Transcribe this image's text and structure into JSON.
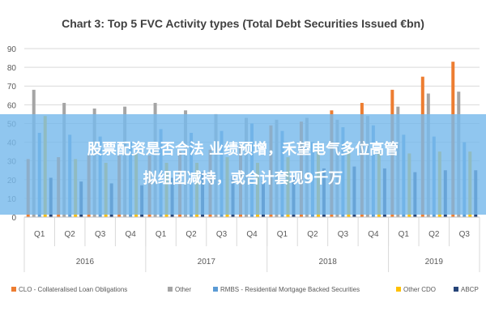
{
  "chart_data": {
    "type": "bar",
    "title": "Chart 3: Top 5 FVC Activity types (Total Debt Securities Issued €bn)",
    "xlabel": "",
    "ylabel": "",
    "ylim": [
      0,
      90
    ],
    "yticks": [
      "0",
      "10",
      "20",
      "30",
      "40",
      "50",
      "60",
      "70",
      "80",
      "90"
    ],
    "grid": true,
    "legend_position": "bottom",
    "categories": [
      "Q1",
      "Q2",
      "Q3",
      "Q4",
      "Q1",
      "Q2",
      "Q3",
      "Q4",
      "Q1",
      "Q2",
      "Q3",
      "Q4",
      "Q1",
      "Q2",
      "Q3"
    ],
    "years": [
      {
        "label": "2016",
        "span": 4
      },
      {
        "label": "2017",
        "span": 4
      },
      {
        "label": "2018",
        "span": 4
      },
      {
        "label": "2019",
        "span": 3
      }
    ],
    "series": [
      {
        "name": "CLO - Collateralised Loan Obligations",
        "color": "#ED7D31",
        "values": [
          31,
          32,
          33,
          33,
          33,
          35,
          36,
          39,
          49,
          51,
          57,
          61,
          68,
          75,
          83
        ]
      },
      {
        "name": "Other",
        "color": "#A5A5A5",
        "values": [
          68,
          61,
          58,
          59,
          61,
          57,
          55,
          53,
          52,
          53,
          52,
          54,
          59,
          66,
          67
        ]
      },
      {
        "name": "RMBS - Residential Mortgage Backed Securities",
        "color": "#5B9BD5",
        "values": [
          45,
          44,
          43,
          40,
          47,
          45,
          46,
          50,
          46,
          40,
          48,
          49,
          44,
          43,
          40
        ]
      },
      {
        "name": "Other CDO",
        "color": "#FFC000",
        "values": [
          54,
          31,
          29,
          34,
          29,
          29,
          32,
          29,
          32,
          36,
          36,
          35,
          34,
          35,
          35
        ]
      },
      {
        "name": "ABCP",
        "color": "#264478",
        "values": [
          21,
          19,
          18,
          17,
          21,
          24,
          22,
          19,
          22,
          26,
          27,
          26,
          24,
          25,
          25
        ]
      }
    ]
  },
  "overlay": {
    "line1": "股票配资是否合法 业绩预增，禾望电气多位高管",
    "line2": "拟组团减持，或合计套现9千万"
  }
}
